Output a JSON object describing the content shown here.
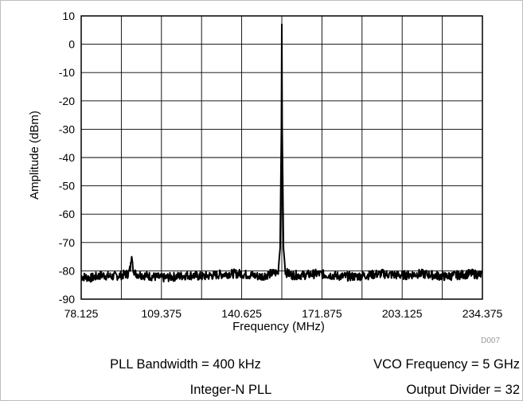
{
  "chart_data": {
    "type": "line",
    "title": "",
    "xlabel": "Frequency (MHz)",
    "ylabel": "Amplitude (dBm)",
    "xlim": [
      78.125,
      234.375
    ],
    "ylim": [
      -90,
      10
    ],
    "x_ticks": [
      "78.125",
      "109.375",
      "140.625",
      "171.875",
      "203.125",
      "234.375"
    ],
    "y_ticks": [
      "10",
      "0",
      "-10",
      "-20",
      "-30",
      "-40",
      "-50",
      "-60",
      "-70",
      "-80",
      "-90"
    ],
    "x_minor_step": 15.625,
    "grid": true,
    "series": [
      {
        "x": [
          78.125,
          82,
          86,
          90,
          94,
          96.5,
          97.3,
          97.8,
          98.4,
          99.2,
          102,
          106,
          110,
          115,
          120,
          125,
          130,
          135,
          140,
          144,
          148,
          152,
          154.8,
          155.6,
          156.1,
          156.25,
          156.4,
          156.9,
          157.7,
          160,
          165,
          170,
          175,
          180,
          185,
          190,
          195,
          200,
          205,
          210,
          215,
          220,
          225,
          230,
          234.375
        ],
        "y": [
          -82,
          -82.5,
          -81.5,
          -82,
          -81.5,
          -81,
          -79,
          -75,
          -79,
          -81,
          -81.5,
          -82,
          -82.5,
          -82,
          -81.5,
          -82,
          -81.5,
          -81,
          -81,
          -81.5,
          -82,
          -81,
          -80.5,
          -72,
          -30,
          7,
          -30,
          -72,
          -80.5,
          -81.5,
          -81.5,
          -81,
          -81.5,
          -82,
          -82,
          -81.5,
          -81,
          -81.5,
          -81.5,
          -81,
          -81.5,
          -82,
          -81.5,
          -81,
          -81.5
        ]
      }
    ],
    "annotation": "D007"
  },
  "footer": {
    "pll_bandwidth": "PLL Bandwidth = 400 kHz",
    "vco_frequency": "VCO Frequency = 5 GHz",
    "pll_mode": "Integer-N PLL",
    "output_divider": "Output Divider = 32"
  }
}
